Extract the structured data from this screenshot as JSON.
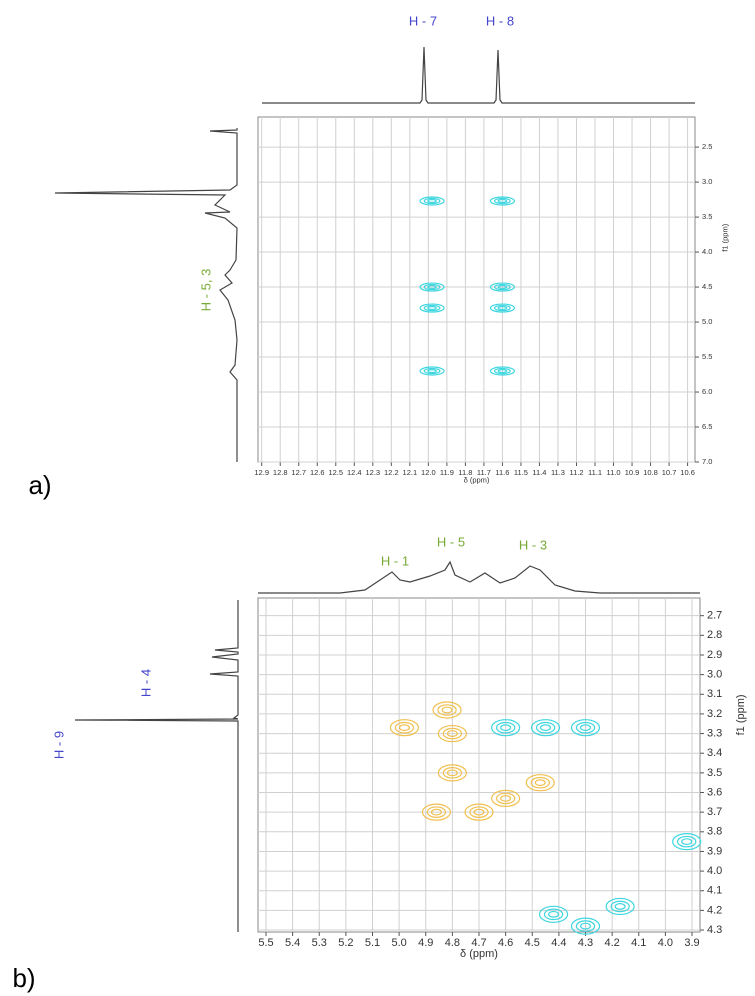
{
  "chart_data": [
    {
      "type": "nmr2d",
      "panel": "a)",
      "xlabel": "δ (ppm)",
      "ylabel": "f1 (ppm)",
      "xlim": [
        12.92,
        10.56
      ],
      "ylim": [
        2.07,
        7.0
      ],
      "xticks": [
        12.9,
        12.8,
        12.7,
        12.6,
        12.5,
        12.4,
        12.3,
        12.2,
        12.1,
        {
          "value": 12,
          "label": "12.0"
        },
        11.9,
        11.8,
        11.7,
        11.6,
        11.5,
        11.4,
        11.3,
        11.2,
        11.1,
        {
          "value": 11,
          "label": "11.0"
        },
        10.9,
        10.8,
        10.7,
        10.6
      ],
      "yticks": [
        2.5,
        {
          "value": 3,
          "label": "3.0"
        },
        3.5,
        {
          "value": 4,
          "label": "4.0"
        },
        4.5,
        {
          "value": 5,
          "label": "5.0"
        },
        5.5,
        {
          "value": 6,
          "label": "6.0"
        },
        6.5,
        {
          "value": 7,
          "label": "7.0"
        }
      ],
      "grid": true,
      "labels": [
        "H - 7",
        "H - 8",
        "H - 5, 3"
      ],
      "series": [
        {
          "color": "#3fd6e0",
          "x": [
            11.98,
            11.6,
            11.98,
            11.6,
            11.98,
            11.6,
            11.98,
            11.6
          ],
          "y": [
            3.27,
            3.27,
            4.5,
            4.5,
            4.8,
            4.8,
            5.7,
            5.7
          ]
        }
      ]
    },
    {
      "type": "nmr2d",
      "panel": "b)",
      "xlabel": "δ (ppm)",
      "ylabel": "f1 (ppm)",
      "xlim": [
        5.53,
        3.87
      ],
      "ylim": [
        2.61,
        4.31
      ],
      "xticks": [
        5.5,
        5.4,
        5.3,
        5.2,
        5.1,
        {
          "value": 5,
          "label": "5.0"
        },
        4.9,
        4.8,
        4.7,
        4.6,
        4.5,
        4.4,
        4.3,
        4.2,
        4.1,
        {
          "value": 4,
          "label": "4.0"
        },
        3.9
      ],
      "yticks": [
        2.7,
        2.8,
        2.9,
        {
          "value": 3,
          "label": "3.0"
        },
        3.1,
        3.2,
        3.3,
        3.4,
        3.5,
        3.6,
        3.7,
        3.8,
        3.9,
        {
          "value": 4,
          "label": "4.0"
        },
        4.1,
        4.2,
        4.3
      ],
      "grid": true,
      "labels": [
        "H - 1",
        "H - 5",
        "H - 3",
        "H - 4",
        "H - 9"
      ],
      "series": [
        {
          "color": "#f0c050",
          "x": [
            4.98,
            4.8,
            4.82,
            4.8,
            4.47,
            4.7,
            4.86,
            4.6
          ],
          "y": [
            3.27,
            3.3,
            3.18,
            3.5,
            3.55,
            3.7,
            3.7,
            3.63
          ]
        },
        {
          "color": "#3fd6e0",
          "x": [
            4.6,
            4.45,
            4.3,
            3.92,
            4.42,
            4.3,
            4.17
          ],
          "y": [
            3.27,
            3.27,
            3.27,
            3.85,
            4.22,
            4.28,
            4.18
          ]
        }
      ]
    }
  ]
}
